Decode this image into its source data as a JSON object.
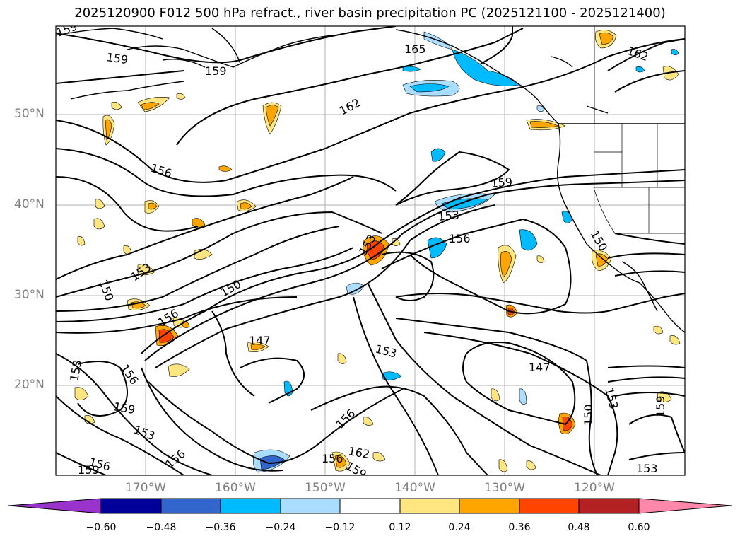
{
  "title": "2025120900 F012 500 hPa refract., river basin precipitation PC (2025121100 - 2025121400)",
  "map": {
    "lon_range": [
      -180,
      -110
    ],
    "lat_range": [
      10,
      60
    ],
    "lat_labels": [
      {
        "lat": 50,
        "text": "50°N"
      },
      {
        "lat": 40,
        "text": "40°N"
      },
      {
        "lat": 30,
        "text": "30°N"
      },
      {
        "lat": 20,
        "text": "20°N"
      }
    ],
    "lon_labels": [
      {
        "lon": -170,
        "text": "170°W"
      },
      {
        "lon": -160,
        "text": "160°W"
      },
      {
        "lon": -150,
        "text": "150°W"
      },
      {
        "lon": -140,
        "text": "140°W"
      },
      {
        "lon": -130,
        "text": "130°W"
      },
      {
        "lon": -120,
        "text": "120°W"
      }
    ],
    "contour_labels": [
      "159",
      "159",
      "159",
      "165",
      "162",
      "162",
      "156",
      "159",
      "153",
      "156",
      "153",
      "150",
      "150",
      "156",
      "147",
      "153",
      "147",
      "153",
      "156",
      "159",
      "153",
      "156",
      "156",
      "159",
      "156",
      "162",
      "159",
      "150",
      "153",
      "159",
      "153",
      "156",
      "150",
      "153"
    ]
  },
  "colorbar": {
    "ticks": [
      "−0.60",
      "−0.48",
      "−0.36",
      "−0.24",
      "−0.12",
      "0.12",
      "0.24",
      "0.36",
      "0.48",
      "0.60"
    ],
    "colors": [
      "#9933cc",
      "#000099",
      "#3366cc",
      "#00bbff",
      "#aaddff",
      "#ffffff",
      "#ffe680",
      "#ffa500",
      "#ff4400",
      "#b22222",
      "#ff88aa"
    ]
  }
}
